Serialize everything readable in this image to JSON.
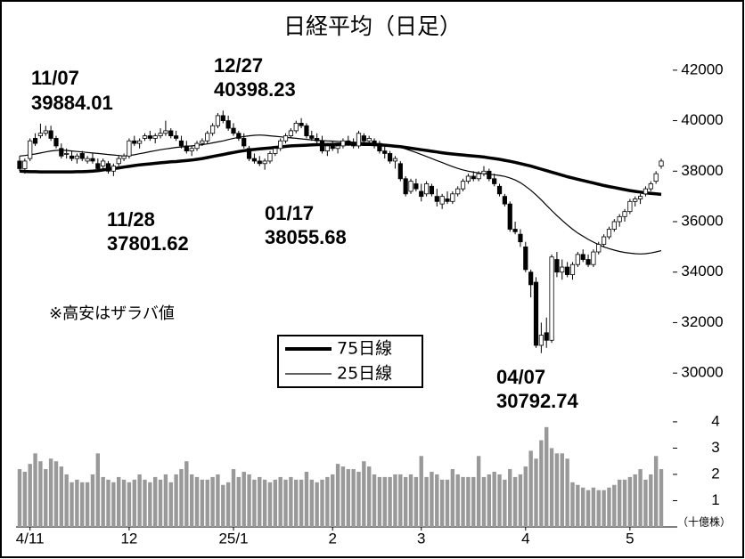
{
  "chart_data": {
    "type": "candlestick",
    "title": "日経平均（日足）",
    "note": "※高安はザラバ値",
    "annotations": [
      "11/07",
      "12/27",
      "11/28",
      "01/17",
      "04/07"
    ],
    "categories": [
      null,
      null,
      "4/11",
      null,
      null,
      null,
      null,
      null,
      null,
      null,
      null,
      null,
      null,
      null,
      null,
      null,
      null,
      null,
      null,
      null,
      null,
      "12",
      null,
      null,
      null,
      null,
      null,
      null,
      null,
      null,
      null,
      null,
      null,
      null,
      null,
      null,
      null,
      null,
      null,
      null,
      null,
      "25/1",
      null,
      null,
      null,
      null,
      null,
      null,
      null,
      null,
      null,
      null,
      null,
      null,
      null,
      null,
      null,
      null,
      null,
      null,
      "2",
      null,
      null,
      null,
      null,
      null,
      null,
      null,
      null,
      null,
      null,
      null,
      null,
      null,
      null,
      null,
      null,
      "3",
      null,
      null,
      null,
      null,
      null,
      null,
      null,
      null,
      null,
      null,
      null,
      null,
      null,
      null,
      null,
      null,
      null,
      null,
      null,
      "4",
      null,
      null,
      null,
      null,
      null,
      null,
      null,
      null,
      null,
      null,
      null,
      null,
      null,
      null,
      null,
      null,
      null,
      null,
      null,
      "5",
      null,
      null,
      null,
      null,
      null,
      null
    ],
    "up_color": "#ffffff",
    "down_color": "#000000",
    "ohlc": [
      [
        38400,
        38600,
        38000,
        38100
      ],
      [
        38100,
        38500,
        37900,
        38400
      ],
      [
        38500,
        39300,
        38400,
        39200
      ],
      [
        39300,
        39500,
        39000,
        39100
      ],
      [
        39400,
        39884.01,
        39300,
        39500
      ],
      [
        39500,
        39800,
        39400,
        39600
      ],
      [
        39600,
        39800,
        39200,
        39300
      ],
      [
        39300,
        39400,
        38900,
        39000
      ],
      [
        38900,
        39100,
        38500,
        38600
      ],
      [
        38700,
        38900,
        38500,
        38700
      ],
      [
        38600,
        38800,
        38400,
        38500
      ],
      [
        38500,
        38700,
        38300,
        38600
      ],
      [
        38700,
        38800,
        38400,
        38500
      ],
      [
        38400,
        38600,
        38300,
        38500
      ],
      [
        38500,
        38700,
        38300,
        38400
      ],
      [
        38300,
        38500,
        38000,
        38100
      ],
      [
        38200,
        38500,
        38100,
        38400
      ],
      [
        38300,
        38400,
        37900,
        38000
      ],
      [
        38000,
        38300,
        37801.62,
        38200
      ],
      [
        38300,
        38600,
        38200,
        38500
      ],
      [
        38500,
        38700,
        38400,
        38600
      ],
      [
        38600,
        39300,
        38500,
        39200
      ],
      [
        39200,
        39400,
        39000,
        39100
      ],
      [
        39100,
        39300,
        38900,
        39200
      ],
      [
        39300,
        39500,
        39200,
        39400
      ],
      [
        39400,
        39600,
        39200,
        39300
      ],
      [
        39300,
        39500,
        39100,
        39400
      ],
      [
        39400,
        39700,
        39300,
        39500
      ],
      [
        39500,
        40000,
        39400,
        39600
      ],
      [
        39600,
        39700,
        39300,
        39400
      ],
      [
        39400,
        39600,
        39200,
        39300
      ],
      [
        39200,
        39400,
        38900,
        39000
      ],
      [
        39000,
        39200,
        38700,
        38800
      ],
      [
        38800,
        39000,
        38600,
        38900
      ],
      [
        38900,
        39200,
        38800,
        39100
      ],
      [
        39100,
        39300,
        39000,
        39200
      ],
      [
        39200,
        39600,
        39100,
        39500
      ],
      [
        39500,
        39900,
        39400,
        39800
      ],
      [
        39800,
        40300,
        39700,
        40200
      ],
      [
        40200,
        40398.23,
        39900,
        40000
      ],
      [
        40000,
        40200,
        39600,
        39700
      ],
      [
        39700,
        39900,
        39400,
        39500
      ],
      [
        39500,
        39600,
        39200,
        39300
      ],
      [
        39300,
        39500,
        38900,
        39000
      ],
      [
        38900,
        39000,
        38400,
        38500
      ],
      [
        38500,
        38700,
        38300,
        38400
      ],
      [
        38400,
        38600,
        38200,
        38300
      ],
      [
        38300,
        38500,
        38055.68,
        38400
      ],
      [
        38400,
        38800,
        38300,
        38700
      ],
      [
        38700,
        39000,
        38600,
        38900
      ],
      [
        38900,
        39300,
        38800,
        39200
      ],
      [
        39200,
        39500,
        39100,
        39400
      ],
      [
        39400,
        39700,
        39300,
        39600
      ],
      [
        39600,
        40000,
        39500,
        39900
      ],
      [
        39900,
        40100,
        39700,
        39800
      ],
      [
        39800,
        39900,
        39300,
        39400
      ],
      [
        39400,
        39600,
        39200,
        39300
      ],
      [
        39300,
        39500,
        39100,
        39200
      ],
      [
        39200,
        39400,
        38700,
        38800
      ],
      [
        38800,
        39100,
        38600,
        39000
      ],
      [
        39000,
        39200,
        38800,
        38900
      ],
      [
        38900,
        39100,
        38700,
        39000
      ],
      [
        39000,
        39300,
        38900,
        39200
      ],
      [
        39200,
        39400,
        39000,
        39100
      ],
      [
        39100,
        39300,
        38900,
        39000
      ],
      [
        39000,
        39600,
        38900,
        39500
      ],
      [
        39400,
        39500,
        39100,
        39200
      ],
      [
        39200,
        39400,
        39000,
        39300
      ],
      [
        39200,
        39300,
        38900,
        39100
      ],
      [
        39100,
        39200,
        38700,
        38800
      ],
      [
        38800,
        39000,
        38500,
        38700
      ],
      [
        38700,
        38800,
        38300,
        38400
      ],
      [
        38400,
        38600,
        38100,
        38500
      ],
      [
        38300,
        38400,
        37600,
        37700
      ],
      [
        37700,
        37800,
        37000,
        37100
      ],
      [
        37200,
        37700,
        37100,
        37600
      ],
      [
        37500,
        37700,
        37200,
        37300
      ],
      [
        37200,
        37500,
        36800,
        37000
      ],
      [
        37100,
        37600,
        37000,
        37500
      ],
      [
        37400,
        37500,
        37000,
        37100
      ],
      [
        37000,
        37300,
        36600,
        36800
      ],
      [
        36700,
        37100,
        36500,
        37000
      ],
      [
        36900,
        37200,
        36700,
        36800
      ],
      [
        36800,
        37200,
        36700,
        37100
      ],
      [
        37100,
        37400,
        37000,
        37300
      ],
      [
        37300,
        37700,
        37200,
        37600
      ],
      [
        37600,
        37900,
        37500,
        37800
      ],
      [
        37800,
        38000,
        37600,
        37700
      ],
      [
        37700,
        38000,
        37600,
        37900
      ],
      [
        37900,
        38200,
        37800,
        38000
      ],
      [
        38000,
        38100,
        37600,
        37700
      ],
      [
        37700,
        37900,
        37400,
        37500
      ],
      [
        37400,
        37500,
        37000,
        37100
      ],
      [
        37000,
        37100,
        36600,
        36700
      ],
      [
        36700,
        36800,
        35600,
        35700
      ],
      [
        35700,
        36000,
        35500,
        35600
      ],
      [
        35500,
        35700,
        35000,
        35200
      ],
      [
        35000,
        35200,
        34000,
        34100
      ],
      [
        34000,
        34100,
        33000,
        33500
      ],
      [
        33600,
        33800,
        31000,
        31100
      ],
      [
        31100,
        32000,
        30792.74,
        31500
      ],
      [
        31600,
        32200,
        31000,
        31300
      ],
      [
        31300,
        34700,
        31200,
        34600
      ],
      [
        34500,
        34800,
        33800,
        34000
      ],
      [
        34000,
        34500,
        33700,
        34200
      ],
      [
        34200,
        34400,
        33800,
        33900
      ],
      [
        33900,
        34400,
        33700,
        34300
      ],
      [
        34300,
        34800,
        34200,
        34700
      ],
      [
        34700,
        34900,
        34400,
        34500
      ],
      [
        34500,
        34700,
        34200,
        34300
      ],
      [
        34300,
        34900,
        34200,
        34800
      ],
      [
        34800,
        35200,
        34700,
        35100
      ],
      [
        35100,
        35500,
        35000,
        35400
      ],
      [
        35400,
        35800,
        35300,
        35700
      ],
      [
        35700,
        36100,
        35600,
        36000
      ],
      [
        36000,
        36300,
        35800,
        36200
      ],
      [
        36200,
        36500,
        36000,
        36400
      ],
      [
        36400,
        36900,
        36300,
        36800
      ],
      [
        36800,
        37000,
        36600,
        36900
      ],
      [
        36900,
        37100,
        36700,
        37000
      ],
      [
        37100,
        37400,
        37000,
        37300
      ],
      [
        37300,
        37600,
        37200,
        37500
      ],
      [
        37600,
        38000,
        37500,
        37900
      ],
      [
        38200,
        38500,
        38100,
        38400
      ]
    ],
    "series": [
      {
        "name": "75日線",
        "color": "#000000",
        "values": [
          38000,
          37990,
          37980,
          37980,
          37970,
          37970,
          37970,
          37970,
          37970,
          37970,
          37970,
          37980,
          37980,
          37990,
          38000,
          38020,
          38050,
          38080,
          38100,
          38130,
          38160,
          38190,
          38220,
          38250,
          38270,
          38290,
          38310,
          38330,
          38350,
          38370,
          38380,
          38400,
          38420,
          38440,
          38470,
          38500,
          38540,
          38580,
          38620,
          38660,
          38700,
          38740,
          38780,
          38810,
          38840,
          38860,
          38880,
          38900,
          38920,
          38940,
          38960,
          38980,
          39000,
          39010,
          39020,
          39030,
          39040,
          39050,
          39050,
          39060,
          39060,
          39070,
          39070,
          39070,
          39070,
          39070,
          39060,
          39060,
          39050,
          39040,
          39030,
          39010,
          38990,
          38970,
          38940,
          38910,
          38880,
          38850,
          38820,
          38790,
          38760,
          38730,
          38700,
          38680,
          38660,
          38640,
          38620,
          38600,
          38580,
          38560,
          38530,
          38500,
          38470,
          38430,
          38390,
          38350,
          38300,
          38250,
          38200,
          38140,
          38080,
          38020,
          37960,
          37900,
          37840,
          37780,
          37730,
          37680,
          37630,
          37580,
          37530,
          37480,
          37430,
          37390,
          37350,
          37310,
          37270,
          37230,
          37200,
          37170,
          37140,
          37120,
          37100,
          37080
        ]
      },
      {
        "name": "25日線",
        "color": "#000000",
        "values": [
          38600,
          38620,
          38650,
          38680,
          38720,
          38760,
          38800,
          38820,
          38830,
          38820,
          38800,
          38780,
          38760,
          38740,
          38720,
          38700,
          38680,
          38660,
          38640,
          38620,
          38600,
          38620,
          38650,
          38690,
          38730,
          38770,
          38810,
          38850,
          38880,
          38910,
          38940,
          38960,
          38980,
          39000,
          39020,
          39050,
          39080,
          39120,
          39160,
          39200,
          39250,
          39300,
          39340,
          39370,
          39400,
          39420,
          39430,
          39420,
          39400,
          39380,
          39360,
          39340,
          39320,
          39300,
          39280,
          39260,
          39240,
          39220,
          39210,
          39200,
          39190,
          39180,
          39170,
          39160,
          39150,
          39140,
          39130,
          39120,
          39100,
          39080,
          39060,
          39030,
          38990,
          38940,
          38880,
          38810,
          38740,
          38660,
          38580,
          38500,
          38420,
          38340,
          38260,
          38180,
          38110,
          38050,
          38000,
          37960,
          37930,
          37900,
          37880,
          37860,
          37830,
          37790,
          37730,
          37650,
          37540,
          37400,
          37240,
          37060,
          36860,
          36650,
          36440,
          36240,
          36050,
          35870,
          35700,
          35550,
          35420,
          35300,
          35190,
          35090,
          35000,
          34930,
          34870,
          34820,
          34780,
          34750,
          34730,
          34720,
          34730,
          34760,
          34800,
          34850
        ]
      }
    ],
    "ylim": [
      29300,
      42700
    ],
    "yticks": [
      30000,
      32000,
      34000,
      36000,
      38000,
      40000,
      42000
    ],
    "volume": {
      "unit": "（十億株）",
      "color": "#999999",
      "ylim": [
        0,
        4.2
      ],
      "yticks": [
        1,
        2,
        3,
        4
      ],
      "values": [
        2.2,
        2.1,
        2.4,
        2.8,
        2.5,
        2.2,
        2.6,
        2.5,
        2.3,
        2.0,
        1.7,
        1.8,
        1.7,
        1.7,
        2.0,
        2.8,
        1.9,
        1.8,
        1.7,
        1.9,
        1.8,
        1.7,
        1.8,
        2.0,
        1.8,
        1.7,
        1.9,
        1.8,
        2.0,
        1.7,
        2.0,
        2.2,
        2.5,
        2.0,
        1.9,
        1.8,
        1.8,
        1.9,
        2.0,
        1.6,
        1.7,
        2.2,
        1.9,
        2.1,
        2.0,
        1.8,
        1.9,
        1.8,
        1.7,
        1.8,
        1.9,
        1.8,
        1.9,
        1.8,
        1.8,
        2.1,
        1.8,
        1.7,
        1.8,
        1.9,
        2.0,
        2.4,
        2.3,
        2.2,
        2.2,
        2.1,
        2.5,
        2.3,
        2.0,
        1.9,
        1.9,
        1.9,
        2.0,
        2.0,
        1.9,
        2.0,
        1.9,
        2.7,
        1.9,
        2.1,
        2.0,
        1.8,
        1.8,
        2.2,
        2.0,
        1.9,
        1.9,
        1.9,
        2.7,
        1.9,
        2.0,
        2.1,
        2.0,
        1.8,
        2.2,
        1.9,
        2.0,
        2.3,
        2.9,
        2.6,
        3.3,
        3.8,
        3.0,
        2.8,
        2.8,
        2.6,
        1.7,
        1.6,
        1.5,
        1.4,
        1.5,
        1.4,
        1.4,
        1.5,
        1.6,
        1.8,
        1.8,
        1.9,
        2.0,
        2.2,
        1.8,
        2.0,
        2.7,
        2.2
      ]
    }
  }
}
